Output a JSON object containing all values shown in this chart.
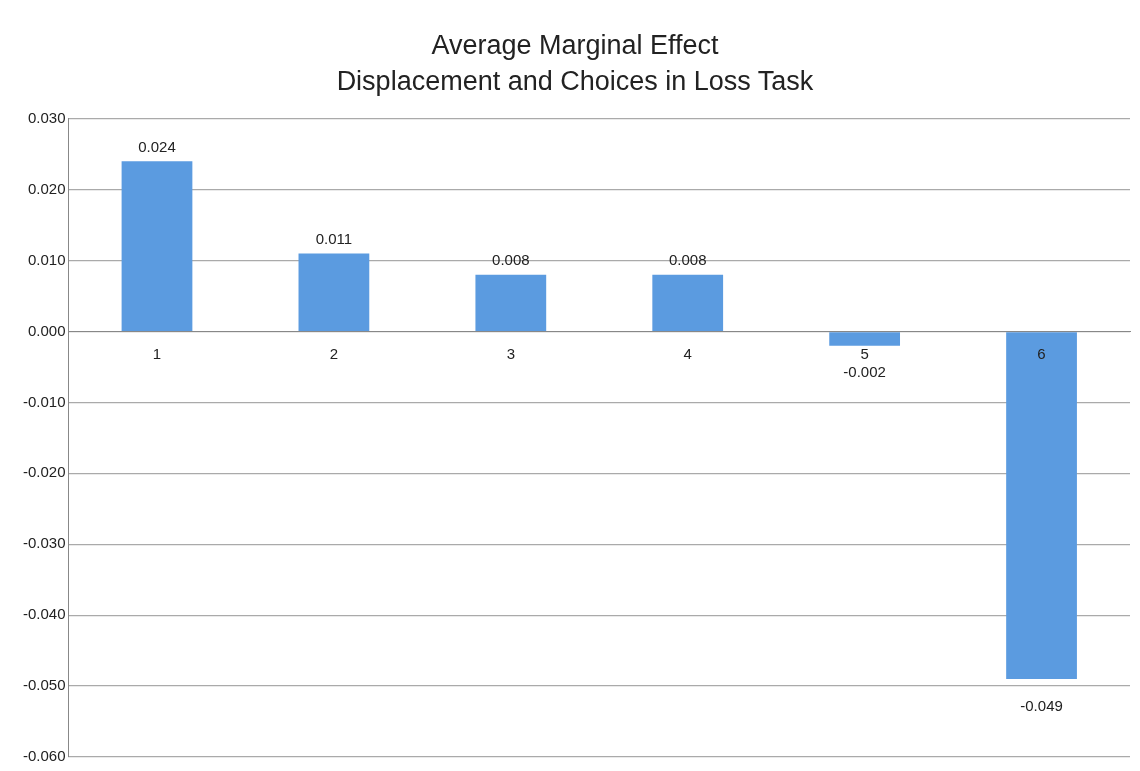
{
  "chart_data": {
    "type": "bar",
    "title": "Average Marginal Effect",
    "subtitle": "Displacement and Choices in Loss Task",
    "categories": [
      "1",
      "2",
      "3",
      "4",
      "5",
      "6"
    ],
    "values": [
      0.024,
      0.011,
      0.008,
      0.008,
      -0.002,
      -0.049
    ],
    "color": "#5b9be0",
    "ylim": [
      -0.06,
      0.03
    ],
    "yticks": [
      {
        "value": -0.06,
        "label": "-0.060"
      },
      {
        "value": -0.05,
        "label": "-0.050"
      },
      {
        "value": -0.04,
        "label": "-0.040"
      },
      {
        "value": -0.03,
        "label": "-0.030"
      },
      {
        "value": -0.02,
        "label": "-0.020"
      },
      {
        "value": -0.01,
        "label": "-0.010"
      },
      {
        "value": 0,
        "label": "0.000"
      },
      {
        "value": 0.01,
        "label": "0.010"
      },
      {
        "value": 0.02,
        "label": "0.020"
      },
      {
        "value": 0.03,
        "label": "0.030"
      }
    ],
    "grid": "y",
    "legend": false,
    "data_labels": true
  }
}
